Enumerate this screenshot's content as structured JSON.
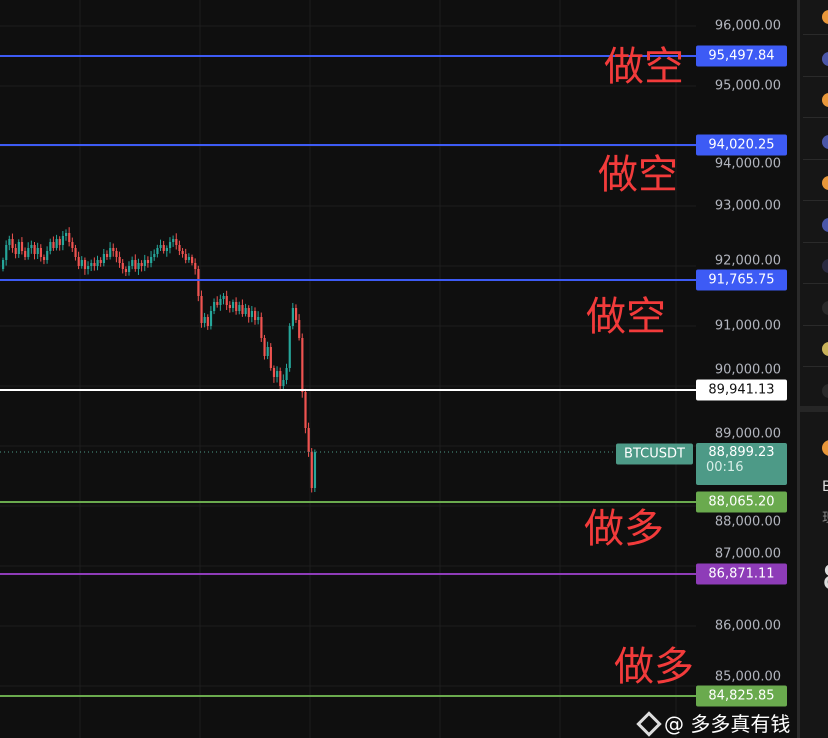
{
  "symbol": "BTCUSDT",
  "current_price": "88,899.23",
  "countdown": "00:16",
  "axis_labels": [
    "96,000.00",
    "95,000.00",
    "94,000.00",
    "93,000.00",
    "92,000.00",
    "91,000.00",
    "90,000.00",
    "89,000.00",
    "88,000.00",
    "87,000.00",
    "86,000.00",
    "85,000.00"
  ],
  "levels": [
    {
      "price": 95497.84,
      "label": "95,497.84",
      "color": "#3d5bf5",
      "note": "做空"
    },
    {
      "price": 94020.25,
      "label": "94,020.25",
      "color": "#3d5bf5",
      "note": "做空"
    },
    {
      "price": 91765.75,
      "label": "91,765.75",
      "color": "#3d5bf5",
      "note": "做空"
    },
    {
      "price": 89941.13,
      "label": "89,941.13",
      "color": "#ffffff",
      "note": ""
    },
    {
      "price": 88065.2,
      "label": "88,065.20",
      "color": "#6aaa4e",
      "note": "做多"
    },
    {
      "price": 86871.11,
      "label": "86,871.11",
      "color": "#8e3cb8",
      "note": ""
    },
    {
      "price": 84825.85,
      "label": "84,825.85",
      "color": "#6aaa4e",
      "note": "做多"
    }
  ],
  "colors": {
    "up": "#26a69a",
    "down": "#ef5350",
    "current": "#4d9a87"
  },
  "closes": [
    92100,
    92350,
    92450,
    92300,
    92200,
    92400,
    92250,
    92150,
    92300,
    92350,
    92200,
    92300,
    92150,
    92100,
    92250,
    92400,
    92300,
    92450,
    92350,
    92500,
    92550,
    92400,
    92300,
    92150,
    92000,
    92100,
    91950,
    92000,
    92050,
    92000,
    92100,
    92050,
    92200,
    92150,
    92300,
    92250,
    92150,
    92050,
    91950,
    91900,
    92000,
    92100,
    91950,
    92050,
    92000,
    92100,
    92050,
    92150,
    92200,
    92300,
    92350,
    92250,
    92300,
    92400,
    92450,
    92350,
    92250,
    92200,
    92100,
    92150,
    92050,
    91950,
    91500,
    91050,
    91150,
    91000,
    91250,
    91400,
    91350,
    91450,
    91500,
    91350,
    91300,
    91400,
    91250,
    91350,
    91200,
    91300,
    91150,
    91250,
    91100,
    91150,
    90800,
    90500,
    90650,
    90300,
    90150,
    90250,
    90000,
    90100,
    90300,
    91000,
    91300,
    91100,
    90800,
    89900,
    89300,
    88900,
    88300,
    88899
  ],
  "price_axis": {
    "top": 96000
  },
  "watermark": "@ 多多真有钱",
  "panel": {
    "partial_text": [
      "B",
      "现",
      "8"
    ]
  }
}
